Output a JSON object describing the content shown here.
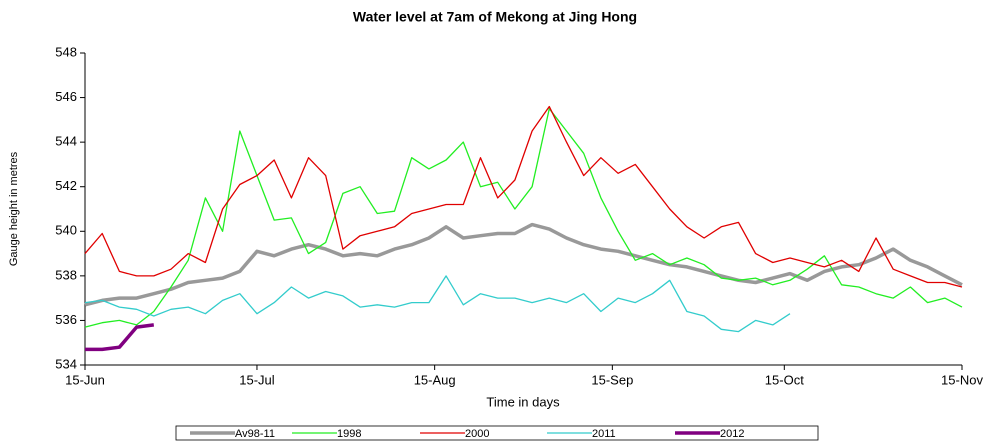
{
  "chart_data": {
    "type": "line",
    "title": "Water level at 7am of Mekong at Jing Hong",
    "x_label": "Time in days",
    "y_label": "Gauge height in metres",
    "x": [
      0,
      3,
      6,
      9,
      12,
      15,
      18,
      21,
      24,
      27,
      30,
      33,
      36,
      39,
      42,
      45,
      48,
      51,
      54,
      57,
      60,
      63,
      66,
      69,
      72,
      75,
      78,
      81,
      84,
      87,
      90,
      93,
      96,
      99,
      102,
      105,
      108,
      111,
      114,
      117,
      120,
      123,
      126,
      129,
      132,
      135,
      138,
      141,
      144,
      147,
      150,
      153
    ],
    "xlim": [
      0,
      153
    ],
    "xticks": [
      {
        "value": 0,
        "label": "15-Jun"
      },
      {
        "value": 30,
        "label": "15-Jul"
      },
      {
        "value": 61,
        "label": "15-Aug"
      },
      {
        "value": 92,
        "label": "15-Sep"
      },
      {
        "value": 122,
        "label": "15-Oct"
      },
      {
        "value": 153,
        "label": "15-Nov"
      }
    ],
    "ylim": [
      534,
      548
    ],
    "yticks": [
      534,
      536,
      538,
      540,
      542,
      544,
      546,
      548
    ],
    "grid": false,
    "legend": "bottom",
    "series": [
      {
        "name": "Av98-11",
        "color": "#999999",
        "width": 3.5,
        "values": [
          536.7,
          536.9,
          537.0,
          537.0,
          537.2,
          537.4,
          537.7,
          537.8,
          537.9,
          538.2,
          539.1,
          538.9,
          539.2,
          539.4,
          539.2,
          538.9,
          539.0,
          538.9,
          539.2,
          539.4,
          539.7,
          540.2,
          539.7,
          539.8,
          539.9,
          539.9,
          540.3,
          540.1,
          539.7,
          539.4,
          539.2,
          539.1,
          538.9,
          538.7,
          538.5,
          538.4,
          538.2,
          538.0,
          537.8,
          537.7,
          537.9,
          538.1,
          537.8,
          538.2,
          538.4,
          538.5,
          538.8,
          539.2,
          538.7,
          538.4,
          538.0,
          537.6
        ]
      },
      {
        "name": "1998",
        "color": "#22ee22",
        "width": 1.3,
        "values": [
          535.7,
          535.9,
          536.0,
          535.8,
          536.4,
          537.5,
          538.7,
          541.5,
          540.0,
          544.5,
          542.5,
          540.5,
          540.6,
          539.0,
          539.5,
          541.7,
          542.0,
          540.8,
          540.9,
          543.3,
          542.8,
          543.2,
          544.0,
          542.0,
          542.2,
          541.0,
          542.0,
          545.5,
          544.5,
          543.5,
          541.5,
          540.0,
          538.7,
          539.0,
          538.5,
          538.8,
          538.5,
          537.9,
          537.8,
          537.9,
          537.6,
          537.8,
          538.3,
          538.9,
          537.6,
          537.5,
          537.2,
          537.0,
          537.5,
          536.8,
          537.0,
          536.6
        ]
      },
      {
        "name": "2000",
        "color": "#e00000",
        "width": 1.3,
        "values": [
          539.0,
          539.9,
          538.2,
          538.0,
          538.0,
          538.3,
          539.0,
          538.6,
          541.0,
          542.1,
          542.5,
          543.2,
          541.5,
          543.3,
          542.5,
          539.2,
          539.8,
          540.0,
          540.2,
          540.8,
          541.0,
          541.2,
          541.2,
          543.3,
          541.5,
          542.3,
          544.5,
          545.6,
          544.0,
          542.5,
          543.3,
          542.6,
          543.0,
          542.0,
          541.0,
          540.2,
          539.7,
          540.2,
          540.4,
          539.0,
          538.6,
          538.8,
          538.6,
          538.4,
          538.7,
          538.2,
          539.7,
          538.3,
          538.0,
          537.7,
          537.7,
          537.5
        ]
      },
      {
        "name": "2011",
        "color": "#33cccc",
        "width": 1.3,
        "values": [
          536.8,
          536.9,
          536.6,
          536.5,
          536.2,
          536.5,
          536.6,
          536.3,
          536.9,
          537.2,
          536.3,
          536.8,
          537.5,
          537.0,
          537.3,
          537.1,
          536.6,
          536.7,
          536.6,
          536.8,
          536.8,
          538.0,
          536.7,
          537.2,
          537.0,
          537.0,
          536.8,
          537.0,
          536.8,
          537.2,
          536.4,
          537.0,
          536.8,
          537.2,
          537.8,
          536.4,
          536.2,
          535.6,
          535.5,
          536.0,
          535.8,
          536.3,
          null,
          null,
          null,
          null,
          null,
          null,
          null,
          null,
          null,
          null
        ]
      },
      {
        "name": "2012",
        "color": "#800080",
        "width": 3.5,
        "values": [
          534.7,
          534.7,
          534.8,
          535.7,
          535.8,
          null,
          null,
          null,
          null,
          null,
          null,
          null,
          null,
          null,
          null,
          null,
          null,
          null,
          null,
          null,
          null,
          null,
          null,
          null,
          null,
          null,
          null,
          null,
          null,
          null,
          null,
          null,
          null,
          null,
          null,
          null,
          null,
          null,
          null,
          null,
          null,
          null,
          null,
          null,
          null,
          null,
          null,
          null,
          null,
          null,
          null,
          null
        ]
      }
    ]
  }
}
